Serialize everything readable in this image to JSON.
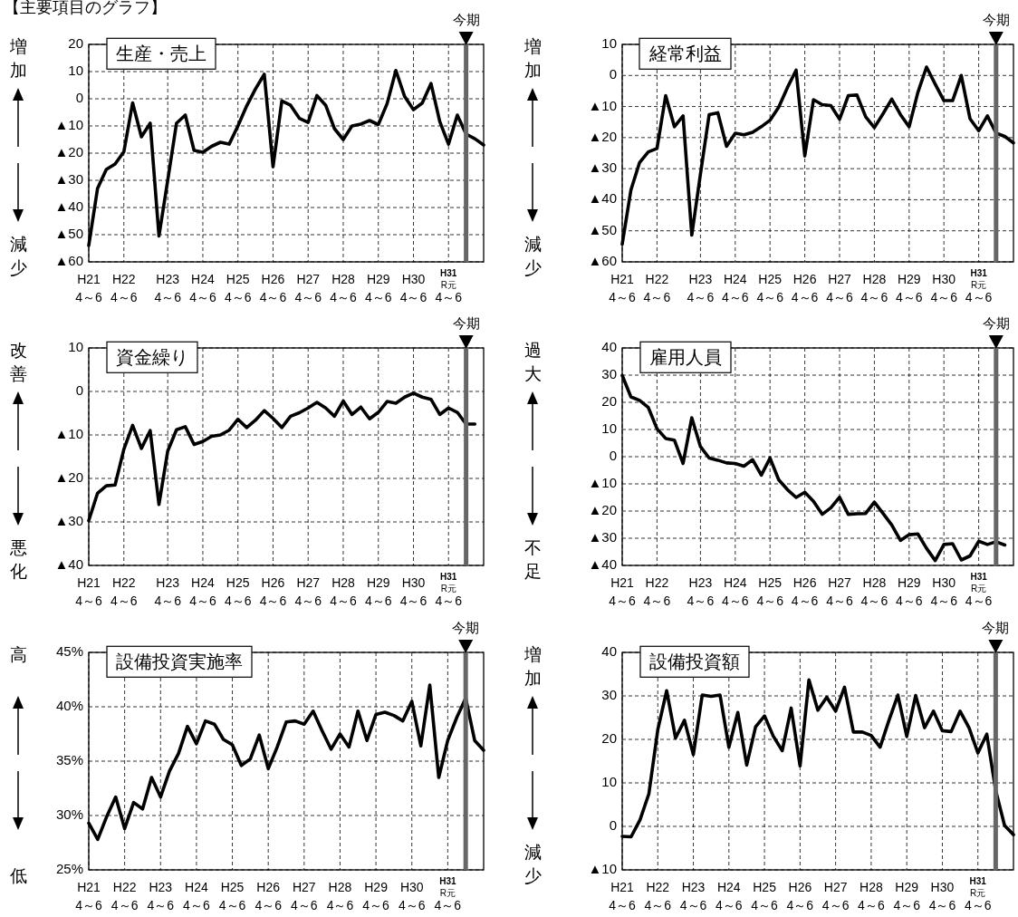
{
  "chart_data": [
    {
      "type": "line",
      "title": "生産・売上",
      "annotations": [
        "増加",
        "減少",
        "今期",
        "【主要項目のグラフ】"
      ],
      "color": "#000000",
      "grid": true,
      "categories": [
        "H21\n4～6",
        null,
        null,
        null,
        "H22\n4～6",
        null,
        null,
        null,
        null,
        "H23\n4～6",
        null,
        null,
        null,
        "H24\n4～6",
        null,
        null,
        null,
        "H25\n4～6",
        null,
        null,
        null,
        "H26\n4～6",
        null,
        null,
        null,
        "H27\n4～6",
        null,
        null,
        null,
        "H28\n4～6",
        null,
        null,
        null,
        "H29\n4～6",
        null,
        null,
        null,
        "H30\n4～6",
        null,
        null,
        null,
        "H31\nR元\n4～6",
        null,
        null,
        null,
        null
      ],
      "ylim": [
        -60,
        20
      ],
      "yticks": [
        20,
        10,
        0,
        {
          "value": -10,
          "label": "▲10"
        },
        {
          "value": -20,
          "label": "▲20"
        },
        {
          "value": -30,
          "label": "▲30"
        },
        {
          "value": -40,
          "label": "▲40"
        },
        {
          "value": -50,
          "label": "▲50"
        },
        {
          "value": -60,
          "label": "▲60"
        }
      ],
      "values": [
        -54,
        -33,
        -26,
        -24,
        -19.5,
        -1.5,
        -14,
        -9,
        -50.5,
        -30,
        -9,
        -6,
        -19,
        -19.7,
        -17.5,
        -16,
        -16.7,
        -10,
        -2.6,
        3.6,
        9,
        -25,
        -0.8,
        -2.4,
        -7.2,
        -8.7,
        1.2,
        -2.4,
        -11,
        -15,
        -10,
        -9.3,
        -8,
        -9.5,
        -1.8,
        10.4,
        0.8,
        -4,
        -1.6,
        5.6,
        -8.4,
        -16.7,
        -6,
        -13,
        -14.7,
        -17
      ]
    },
    {
      "type": "line",
      "title": "経常利益",
      "annotations": [
        "増加",
        "減少",
        "今期"
      ],
      "color": "#000000",
      "grid": true,
      "categories": [
        "H21\n4～6",
        null,
        null,
        null,
        "H22\n4～6",
        null,
        null,
        null,
        null,
        "H23\n4～6",
        null,
        null,
        null,
        "H24\n4～6",
        null,
        null,
        null,
        "H25\n4～6",
        null,
        null,
        null,
        "H26\n4～6",
        null,
        null,
        null,
        "H27\n4～6",
        null,
        null,
        null,
        "H28\n4～6",
        null,
        null,
        null,
        "H29\n4～6",
        null,
        null,
        null,
        "H30\n4～6",
        null,
        null,
        null,
        "H31\nR元\n4～6",
        null,
        null,
        null,
        null
      ],
      "ylim": [
        -60,
        10
      ],
      "yticks": [
        10,
        0,
        {
          "value": -10,
          "label": "▲10"
        },
        {
          "value": -20,
          "label": "▲20"
        },
        {
          "value": -30,
          "label": "▲30"
        },
        {
          "value": -40,
          "label": "▲40"
        },
        {
          "value": -50,
          "label": "▲50"
        },
        {
          "value": -60,
          "label": "▲60"
        }
      ],
      "values": [
        -54.3,
        -36.9,
        -28,
        -24.6,
        -23.5,
        -6.5,
        -16.5,
        -13,
        -51.4,
        -31.7,
        -12.6,
        -12,
        -22.8,
        -18.6,
        -19.1,
        -18.3,
        -16.5,
        -14.4,
        -10.2,
        -3.9,
        1.7,
        -25.9,
        -7.8,
        -9.4,
        -9.7,
        -14.1,
        -6.5,
        -6.3,
        -13.3,
        -16.8,
        -12.3,
        -7.6,
        -12.6,
        -16.5,
        -5.5,
        2.7,
        -2.8,
        -8.1,
        -8.1,
        0,
        -13.9,
        -17.8,
        -13,
        -18.6,
        -19.6,
        -21.7
      ]
    },
    {
      "type": "line",
      "title": "資金繰り",
      "annotations": [
        "改善",
        "悪化",
        "今期"
      ],
      "color": "#000000",
      "grid": true,
      "categories": [
        "H21\n4～6",
        null,
        null,
        null,
        "H22\n4～6",
        null,
        null,
        null,
        null,
        "H23\n4～6",
        null,
        null,
        null,
        "H24\n4～6",
        null,
        null,
        null,
        "H25\n4～6",
        null,
        null,
        null,
        "H26\n4～6",
        null,
        null,
        null,
        "H27\n4～6",
        null,
        null,
        null,
        "H28\n4～6",
        null,
        null,
        null,
        "H29\n4～6",
        null,
        null,
        null,
        "H30\n4～6",
        null,
        null,
        null,
        "H31\nR元\n4～6",
        null,
        null,
        null,
        null
      ],
      "ylim": [
        -40,
        10
      ],
      "yticks": [
        10,
        0,
        {
          "value": -10,
          "label": "▲10"
        },
        {
          "value": -20,
          "label": "▲20"
        },
        {
          "value": -30,
          "label": "▲30"
        },
        {
          "value": -40,
          "label": "▲40"
        }
      ],
      "values": [
        -29.7,
        -23.4,
        -21.7,
        -21.5,
        -13.3,
        -7.8,
        -13.1,
        -9,
        -26,
        -13.7,
        -8.8,
        -8.1,
        -12.2,
        -11.5,
        -10.3,
        -10,
        -8.9,
        -6.4,
        -8.3,
        -6.6,
        -4.4,
        -6.2,
        -8.3,
        -5.7,
        -4.9,
        -3.8,
        -2.5,
        -3.8,
        -5.7,
        -2.2,
        -5.3,
        -3.6,
        -6.3,
        -4.8,
        -2.3,
        -2.7,
        -1.3,
        -0.4,
        -1.3,
        -1.8,
        -5.3,
        -3.8,
        -4.8,
        -7.5,
        -7.5,
        null
      ]
    },
    {
      "type": "line",
      "title": "雇用人員",
      "annotations": [
        "過大",
        "不足",
        "今期"
      ],
      "color": "#000000",
      "grid": true,
      "categories": [
        "H21\n4～6",
        null,
        null,
        null,
        "H22\n4～6",
        null,
        null,
        null,
        null,
        "H23\n4～6",
        null,
        null,
        null,
        "H24\n4～6",
        null,
        null,
        null,
        "H25\n4～6",
        null,
        null,
        null,
        "H26\n4～6",
        null,
        null,
        null,
        "H27\n4～6",
        null,
        null,
        null,
        "H28\n4～6",
        null,
        null,
        null,
        "H29\n4～6",
        null,
        null,
        null,
        "H30\n4～6",
        null,
        null,
        null,
        "H31\nR元\n4～6",
        null,
        null,
        null,
        null
      ],
      "ylim": [
        -40,
        40
      ],
      "yticks": [
        40,
        30,
        20,
        10,
        0,
        {
          "value": -10,
          "label": "▲10"
        },
        {
          "value": -20,
          "label": "▲20"
        },
        {
          "value": -30,
          "label": "▲30"
        },
        {
          "value": -40,
          "label": "▲40"
        }
      ],
      "values": [
        29.9,
        22,
        20.7,
        18.1,
        10.3,
        6.7,
        6.1,
        -2.5,
        14.3,
        3.7,
        -0.5,
        -1.3,
        -2.3,
        -2.5,
        -3.5,
        -1.1,
        -6.8,
        -0.5,
        -8.5,
        -12.1,
        -15,
        -13.1,
        -16.4,
        -21.2,
        -18.8,
        -14.9,
        -21.2,
        -21,
        -20.9,
        -16.7,
        -20.9,
        -25.1,
        -30.8,
        -28.7,
        -28.4,
        -33.7,
        -38.2,
        -32.3,
        -32,
        -38,
        -36.5,
        -31.1,
        -32.3,
        -31.3,
        -32.5,
        null
      ]
    },
    {
      "type": "line",
      "title": "設備投資実施率",
      "annotations": [
        "高",
        "低",
        "今期"
      ],
      "color": "#000000",
      "grid": true,
      "categories": [
        "H21\n4～6",
        null,
        null,
        null,
        "H22\n4～6",
        null,
        null,
        null,
        "H23\n4～6",
        null,
        null,
        null,
        "H24\n4～6",
        null,
        null,
        null,
        "H25\n4～6",
        null,
        null,
        null,
        "H26\n4～6",
        null,
        null,
        null,
        "H27\n4～6",
        null,
        null,
        null,
        "H28\n4～6",
        null,
        null,
        null,
        "H29\n4～6",
        null,
        null,
        null,
        "H30\n4～6",
        null,
        null,
        null,
        "H31\nR元\n4～6",
        null,
        null,
        null,
        null
      ],
      "ylim": [
        25,
        45
      ],
      "yticks": [
        {
          "value": 45,
          "label": "45%"
        },
        {
          "value": 40,
          "label": "40%"
        },
        {
          "value": 35,
          "label": "35%"
        },
        {
          "value": 30,
          "label": "30%"
        },
        {
          "value": 25,
          "label": "25%"
        }
      ],
      "values": [
        29.3,
        27.8,
        29.9,
        31.7,
        28.8,
        31.2,
        30.6,
        33.5,
        31.7,
        34.1,
        35.7,
        38.2,
        36.6,
        38.7,
        38.4,
        37,
        36.5,
        34.6,
        35.2,
        37.4,
        34.3,
        36.3,
        38.6,
        38.7,
        38.4,
        39.6,
        37.8,
        36.1,
        37.5,
        36.3,
        39.6,
        36.9,
        39.3,
        39.5,
        39.2,
        38.7,
        40.5,
        36.4,
        42,
        33.5,
        36.9,
        39,
        40.8,
        36.9,
        36
      ]
    },
    {
      "type": "line",
      "title": "設備投資額",
      "annotations": [
        "増加",
        "減少",
        "今期"
      ],
      "color": "#000000",
      "grid": true,
      "categories": [
        "H21\n4～6",
        null,
        null,
        null,
        "H22\n4～6",
        null,
        null,
        null,
        "H23\n4～6",
        null,
        null,
        null,
        "H24\n4～6",
        null,
        null,
        null,
        "H25\n4～6",
        null,
        null,
        null,
        "H26\n4～6",
        null,
        null,
        null,
        "H27\n4～6",
        null,
        null,
        null,
        "H28\n4～6",
        null,
        null,
        null,
        "H29\n4～6",
        null,
        null,
        null,
        "H30\n4～6",
        null,
        null,
        null,
        "H31\nR元\n4～6",
        null,
        null,
        null,
        null
      ],
      "ylim": [
        -10,
        40
      ],
      "yticks": [
        40,
        30,
        20,
        10,
        0,
        {
          "value": -10,
          "label": "▲10"
        }
      ],
      "values": [
        -2.3,
        -2.4,
        1.5,
        7.5,
        22.2,
        31.2,
        20.3,
        24.4,
        16.5,
        30.2,
        29.9,
        30.2,
        18.2,
        26.2,
        14.1,
        22.9,
        25.4,
        20.7,
        17.4,
        27.2,
        13.9,
        33.7,
        26.7,
        29.7,
        26.5,
        32,
        21.7,
        21.7,
        20.9,
        18.2,
        24.4,
        30.2,
        20.7,
        30.1,
        22.7,
        26.5,
        22,
        21.8,
        26.5,
        22.7,
        16.9,
        21.2,
        8.3,
        0.2,
        -1.9
      ]
    }
  ]
}
